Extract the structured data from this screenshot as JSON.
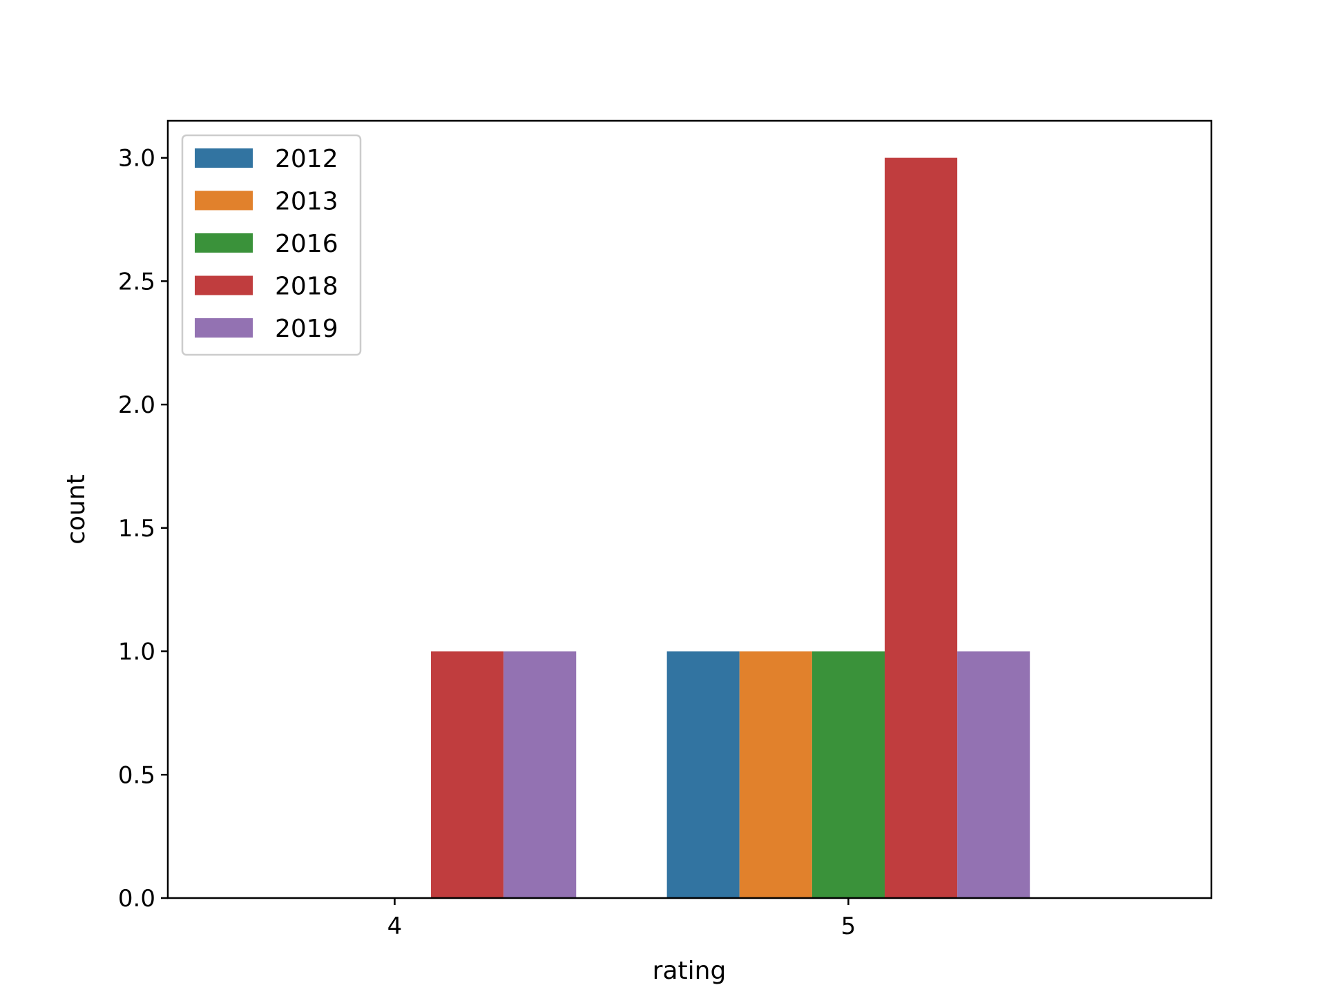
{
  "chart_data": {
    "type": "bar",
    "title": "",
    "xlabel": "rating",
    "ylabel": "count",
    "categories": [
      "4",
      "5"
    ],
    "ylim": [
      0,
      3.15
    ],
    "yticks": [
      "0.0",
      "0.5",
      "1.0",
      "1.5",
      "2.0",
      "2.5",
      "3.0"
    ],
    "grid": false,
    "legend": {
      "placement": "upper-left"
    },
    "series": [
      {
        "name": "2012",
        "color": "#3274a1",
        "values": [
          0,
          1
        ]
      },
      {
        "name": "2013",
        "color": "#e1812c",
        "values": [
          0,
          1
        ]
      },
      {
        "name": "2016",
        "color": "#3a923a",
        "values": [
          0,
          1
        ]
      },
      {
        "name": "2018",
        "color": "#c03d3e",
        "values": [
          1,
          3
        ]
      },
      {
        "name": "2019",
        "color": "#9372b2",
        "values": [
          1,
          1
        ]
      }
    ]
  }
}
